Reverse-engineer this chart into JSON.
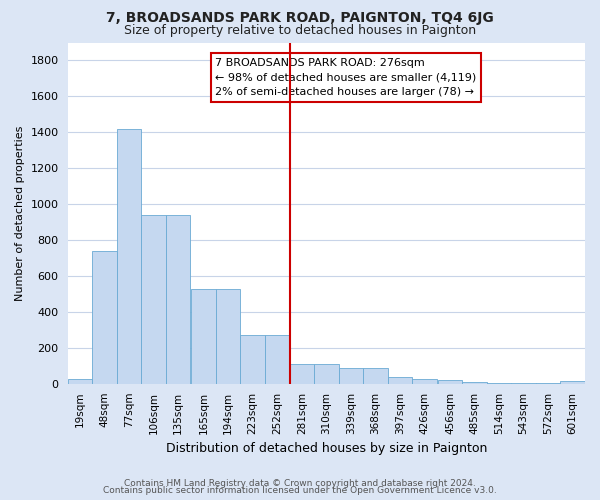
{
  "title": "7, BROADSANDS PARK ROAD, PAIGNTON, TQ4 6JG",
  "subtitle": "Size of property relative to detached houses in Paignton",
  "xlabel": "Distribution of detached houses by size in Paignton",
  "ylabel": "Number of detached properties",
  "bins": [
    19,
    48,
    77,
    106,
    135,
    165,
    194,
    223,
    252,
    281,
    310,
    339,
    368,
    397,
    426,
    456,
    485,
    514,
    543,
    572,
    601
  ],
  "bin_width": 29,
  "counts": [
    25,
    740,
    1420,
    940,
    940,
    530,
    530,
    270,
    270,
    110,
    110,
    90,
    90,
    40,
    25,
    20,
    10,
    5,
    5,
    5,
    15
  ],
  "bar_color": "#c5d8f0",
  "bar_edge_color": "#6aaad4",
  "red_line_x": 281,
  "annotation_lines": [
    "7 BROADSANDS PARK ROAD: 276sqm",
    "← 98% of detached houses are smaller (4,119)",
    "2% of semi-detached houses are larger (78) →"
  ],
  "annotation_box_color": "#ffffff",
  "annotation_box_edge_color": "#cc0000",
  "red_line_color": "#cc0000",
  "fig_bg_color": "#dce6f5",
  "plot_bg_color": "#ffffff",
  "grid_color": "#c8d4e8",
  "ylim": [
    0,
    1900
  ],
  "yticks": [
    0,
    200,
    400,
    600,
    800,
    1000,
    1200,
    1400,
    1600,
    1800
  ],
  "footer1": "Contains HM Land Registry data © Crown copyright and database right 2024.",
  "footer2": "Contains public sector information licensed under the Open Government Licence v3.0.",
  "title_fontsize": 10,
  "subtitle_fontsize": 9,
  "ylabel_fontsize": 8,
  "xlabel_fontsize": 9,
  "ytick_fontsize": 8,
  "xtick_fontsize": 7.5,
  "footer_fontsize": 6.5
}
